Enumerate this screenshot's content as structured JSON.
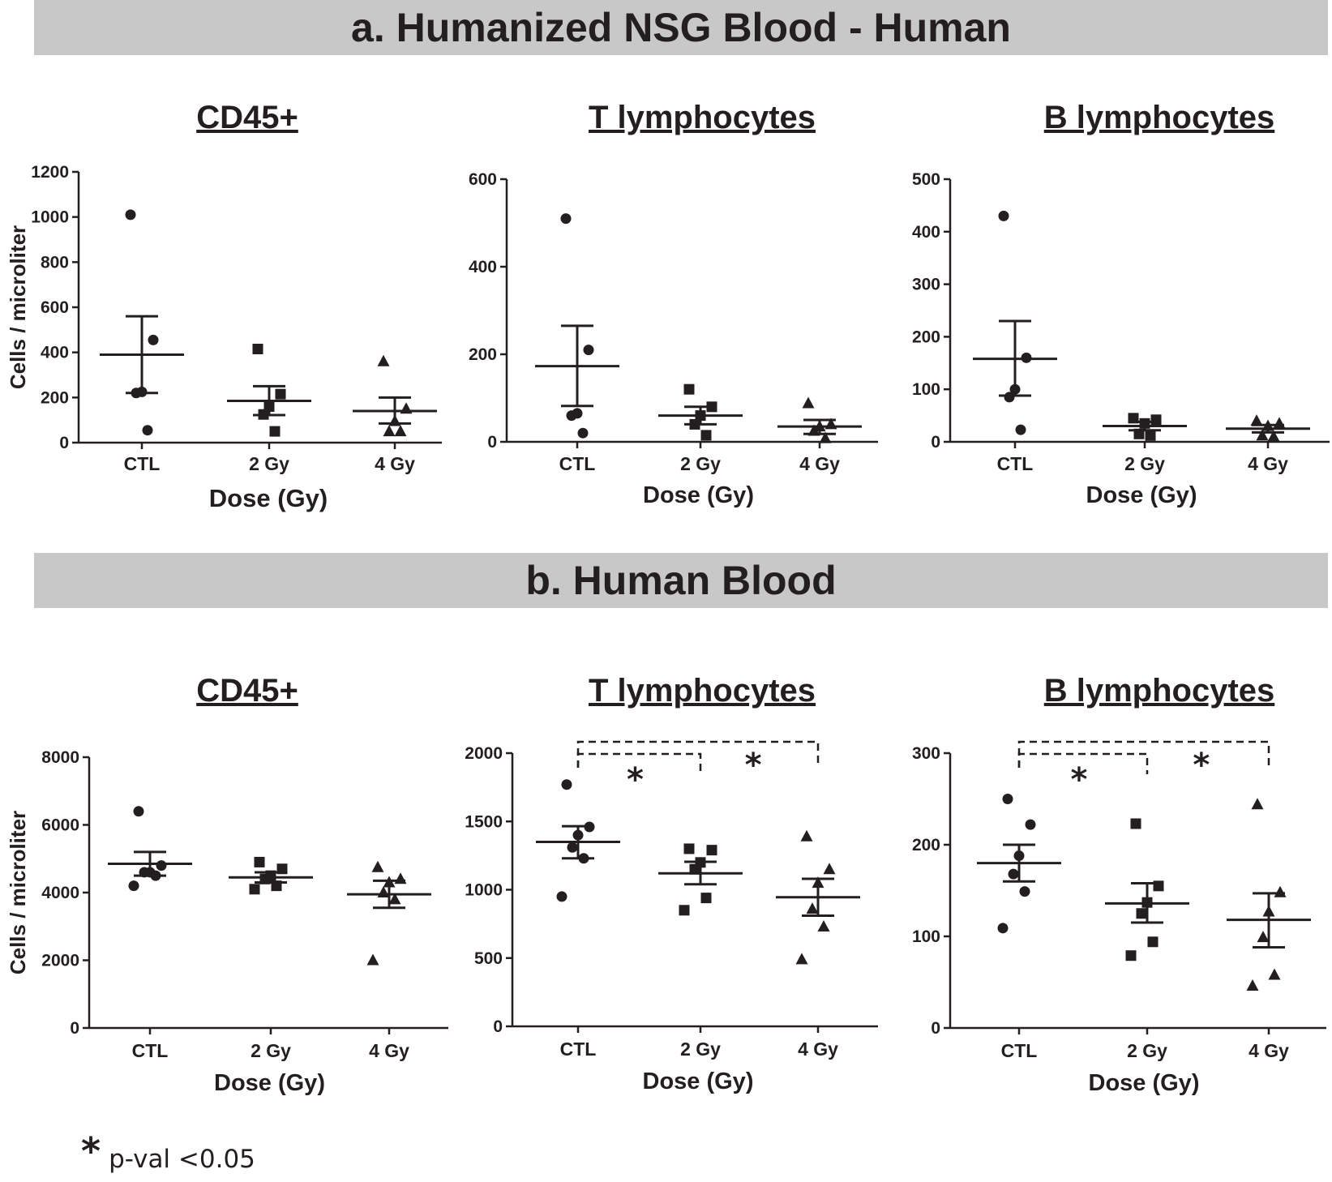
{
  "panels": {
    "a": {
      "banner": "a. Humanized NSG Blood - Human"
    },
    "b": {
      "banner": "b. Human Blood"
    }
  },
  "legend": {
    "symbol": "*",
    "text": "p-val <0.05"
  },
  "colors": {
    "ink": "#231f20",
    "banner_bg": "#c8c8c8"
  },
  "chart_data": [
    {
      "id": "a-cd45",
      "type": "scatter",
      "title": "CD45+",
      "xlabel": "Dose (Gy)",
      "ylabel": "Cells / microliter",
      "categories": [
        "CTL",
        "2 Gy",
        "4 Gy"
      ],
      "ylim": [
        0,
        1200
      ],
      "yticks": [
        0,
        200,
        400,
        600,
        800,
        1000,
        1200
      ],
      "series": [
        {
          "name": "CTL",
          "marker": "circle",
          "points": [
            1010,
            455,
            225,
            220,
            55
          ],
          "mean": 390,
          "sem_low": 220,
          "sem_high": 560
        },
        {
          "name": "2 Gy",
          "marker": "square",
          "points": [
            415,
            215,
            160,
            125,
            50
          ],
          "mean": 185,
          "sem_low": 122,
          "sem_high": 250
        },
        {
          "name": "4 Gy",
          "marker": "triangle",
          "points": [
            360,
            150,
            95,
            50,
            50
          ],
          "mean": 140,
          "sem_low": 85,
          "sem_high": 200
        }
      ],
      "significance": []
    },
    {
      "id": "a-t",
      "type": "scatter",
      "title": "T lymphocytes",
      "xlabel": "Dose (Gy)",
      "ylabel": "",
      "categories": [
        "CTL",
        "2 Gy",
        "4 Gy"
      ],
      "ylim": [
        0,
        600
      ],
      "yticks": [
        0,
        200,
        400,
        600
      ],
      "series": [
        {
          "name": "CTL",
          "marker": "circle",
          "points": [
            510,
            210,
            65,
            60,
            20
          ],
          "mean": 173,
          "sem_low": 82,
          "sem_high": 265
        },
        {
          "name": "2 Gy",
          "marker": "square",
          "points": [
            120,
            80,
            60,
            40,
            15
          ],
          "mean": 60,
          "sem_low": 40,
          "sem_high": 80
        },
        {
          "name": "4 Gy",
          "marker": "triangle",
          "points": [
            88,
            40,
            35,
            25,
            8
          ],
          "mean": 35,
          "sem_low": 18,
          "sem_high": 50
        }
      ],
      "significance": []
    },
    {
      "id": "a-b",
      "type": "scatter",
      "title": "B lymphocytes",
      "xlabel": "Dose (Gy)",
      "ylabel": "",
      "categories": [
        "CTL",
        "2 Gy",
        "4 Gy"
      ],
      "ylim": [
        0,
        500
      ],
      "yticks": [
        0,
        100,
        200,
        300,
        400,
        500
      ],
      "series": [
        {
          "name": "CTL",
          "marker": "circle",
          "points": [
            430,
            160,
            100,
            85,
            23
          ],
          "mean": 158,
          "sem_low": 88,
          "sem_high": 230
        },
        {
          "name": "2 Gy",
          "marker": "square",
          "points": [
            45,
            42,
            35,
            15,
            12
          ],
          "mean": 30,
          "sem_low": 22,
          "sem_high": 38
        },
        {
          "name": "4 Gy",
          "marker": "triangle",
          "points": [
            40,
            35,
            30,
            12,
            10
          ],
          "mean": 25,
          "sem_low": 18,
          "sem_high": 32
        }
      ],
      "significance": []
    },
    {
      "id": "b-cd45",
      "type": "scatter",
      "title": "CD45+",
      "xlabel": "Dose (Gy)",
      "ylabel": "Cells / microliter",
      "categories": [
        "CTL",
        "2 Gy",
        "4 Gy"
      ],
      "ylim": [
        0,
        8000
      ],
      "yticks": [
        0,
        2000,
        4000,
        6000,
        8000
      ],
      "series": [
        {
          "name": "CTL",
          "marker": "circle",
          "points": [
            6400,
            4800,
            4600,
            4600,
            4500,
            4200
          ],
          "mean": 4850,
          "sem_low": 4500,
          "sem_high": 5200
        },
        {
          "name": "2 Gy",
          "marker": "square",
          "points": [
            4900,
            4700,
            4500,
            4400,
            4200,
            4100
          ],
          "mean": 4450,
          "sem_low": 4300,
          "sem_high": 4600
        },
        {
          "name": "4 Gy",
          "marker": "triangle",
          "points": [
            4750,
            4400,
            4300,
            4000,
            3800,
            2000
          ],
          "mean": 3950,
          "sem_low": 3550,
          "sem_high": 4350
        }
      ],
      "significance": []
    },
    {
      "id": "b-t",
      "type": "scatter",
      "title": "T lymphocytes",
      "xlabel": "Dose (Gy)",
      "ylabel": "",
      "categories": [
        "CTL",
        "2 Gy",
        "4 Gy"
      ],
      "ylim": [
        0,
        2000
      ],
      "yticks": [
        0,
        500,
        1000,
        1500,
        2000
      ],
      "series": [
        {
          "name": "CTL",
          "marker": "circle",
          "points": [
            1770,
            1460,
            1400,
            1310,
            1230,
            950
          ],
          "mean": 1350,
          "sem_low": 1230,
          "sem_high": 1465
        },
        {
          "name": "2 Gy",
          "marker": "square",
          "points": [
            1300,
            1290,
            1200,
            1150,
            940,
            850
          ],
          "mean": 1120,
          "sem_low": 1040,
          "sem_high": 1205
        },
        {
          "name": "4 Gy",
          "marker": "triangle",
          "points": [
            1390,
            1150,
            1050,
            860,
            730,
            490
          ],
          "mean": 945,
          "sem_low": 810,
          "sem_high": 1080
        }
      ],
      "significance": [
        {
          "from": "CTL",
          "to": "2 Gy",
          "label": "*"
        },
        {
          "from": "CTL",
          "to": "4 Gy",
          "label": "*"
        }
      ]
    },
    {
      "id": "b-b",
      "type": "scatter",
      "title": "B lymphocytes",
      "xlabel": "Dose (Gy)",
      "ylabel": "",
      "categories": [
        "CTL",
        "2 Gy",
        "4 Gy"
      ],
      "ylim": [
        0,
        300
      ],
      "yticks": [
        0,
        100,
        200,
        300
      ],
      "series": [
        {
          "name": "CTL",
          "marker": "circle",
          "points": [
            250,
            222,
            188,
            168,
            149,
            109
          ],
          "mean": 180,
          "sem_low": 160,
          "sem_high": 200
        },
        {
          "name": "2 Gy",
          "marker": "square",
          "points": [
            223,
            155,
            137,
            125,
            94,
            79
          ],
          "mean": 136,
          "sem_low": 115,
          "sem_high": 158
        },
        {
          "name": "4 Gy",
          "marker": "triangle",
          "points": [
            244,
            148,
            127,
            99,
            58,
            46
          ],
          "mean": 118,
          "sem_low": 88,
          "sem_high": 147
        }
      ],
      "significance": [
        {
          "from": "CTL",
          "to": "2 Gy",
          "label": "*"
        },
        {
          "from": "CTL",
          "to": "4 Gy",
          "label": "*"
        }
      ]
    }
  ]
}
